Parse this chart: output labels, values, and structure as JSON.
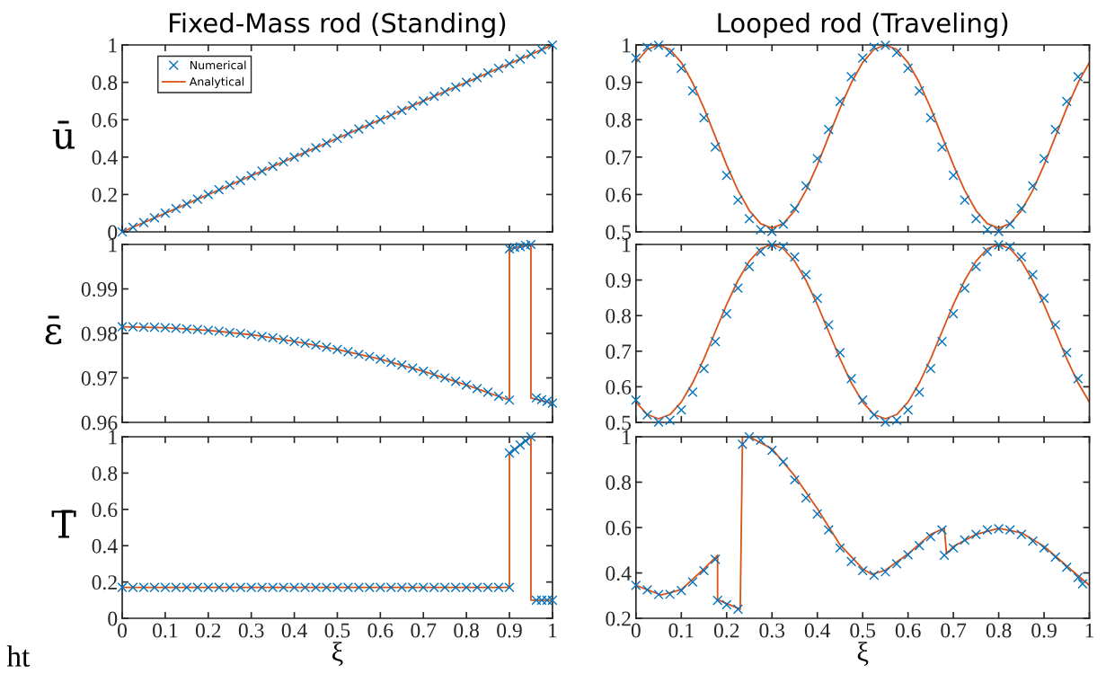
{
  "chart_data": [
    {
      "type": "line",
      "title": "Fixed-Mass rod (Standing)",
      "ylabel": "ū",
      "xlim": [
        0,
        1
      ],
      "xticks": [
        0,
        0.1,
        0.2,
        0.3,
        0.4,
        0.5,
        0.6,
        0.7,
        0.8,
        0.9,
        1
      ],
      "ylim": [
        0,
        1
      ],
      "yticks": [
        0,
        0.2,
        0.4,
        0.6,
        0.8,
        1
      ],
      "tick_labels": "y",
      "grid": false,
      "legend": "top left",
      "series": [
        {
          "name": "Numerical",
          "type": "scatter",
          "marker": "cross",
          "color": "#0072bd",
          "x": [
            0,
            0.025,
            0.05,
            0.075,
            0.1,
            0.125,
            0.15,
            0.175,
            0.2,
            0.225,
            0.25,
            0.275,
            0.3,
            0.325,
            0.35,
            0.375,
            0.4,
            0.425,
            0.45,
            0.475,
            0.5,
            0.525,
            0.55,
            0.575,
            0.6,
            0.625,
            0.65,
            0.675,
            0.7,
            0.725,
            0.75,
            0.775,
            0.8,
            0.825,
            0.85,
            0.875,
            0.9,
            0.925,
            0.95,
            0.975,
            1
          ],
          "values": [
            0,
            0.025,
            0.05,
            0.075,
            0.1,
            0.125,
            0.15,
            0.175,
            0.2,
            0.225,
            0.25,
            0.275,
            0.3,
            0.325,
            0.35,
            0.375,
            0.4,
            0.425,
            0.45,
            0.475,
            0.5,
            0.525,
            0.55,
            0.575,
            0.6,
            0.625,
            0.65,
            0.675,
            0.7,
            0.725,
            0.75,
            0.775,
            0.8,
            0.825,
            0.85,
            0.875,
            0.9,
            0.925,
            0.95,
            0.975,
            1
          ]
        },
        {
          "name": "Analytical",
          "color": "#d95319",
          "x": [
            0,
            1
          ],
          "values": [
            0,
            1
          ]
        }
      ]
    },
    {
      "type": "line",
      "title": "Looped rod (Traveling)",
      "xlim": [
        0,
        1
      ],
      "xticks": [
        0,
        0.1,
        0.2,
        0.3,
        0.4,
        0.5,
        0.6,
        0.7,
        0.8,
        0.9,
        1
      ],
      "ylim": [
        0.5,
        1
      ],
      "yticks": [
        0.5,
        0.6,
        0.7,
        0.8,
        0.9,
        1
      ],
      "tick_labels": "y",
      "grid": false,
      "series": [
        {
          "type": "scatter",
          "marker": "cross",
          "color": "#0072bd",
          "x": [
            0,
            0.025,
            0.05,
            0.075,
            0.1,
            0.125,
            0.15,
            0.175,
            0.2,
            0.225,
            0.25,
            0.275,
            0.3,
            0.325,
            0.35,
            0.375,
            0.4,
            0.425,
            0.45,
            0.475,
            0.5,
            0.525,
            0.55,
            0.575,
            0.6,
            0.625,
            0.65,
            0.675,
            0.7,
            0.725,
            0.75,
            0.775,
            0.8,
            0.825,
            0.85,
            0.875,
            0.9,
            0.925,
            0.95,
            0.975
          ],
          "values": [
            0.965,
            0.994,
            0.999,
            0.98,
            0.938,
            0.877,
            0.805,
            0.727,
            0.651,
            0.585,
            0.535,
            0.506,
            0.501,
            0.521,
            0.563,
            0.623,
            0.696,
            0.774,
            0.849,
            0.915,
            0.965,
            0.994,
            0.999,
            0.98,
            0.938,
            0.877,
            0.805,
            0.727,
            0.651,
            0.585,
            0.535,
            0.506,
            0.501,
            0.521,
            0.563,
            0.623,
            0.696,
            0.774,
            0.849,
            0.915
          ]
        },
        {
          "color": "#d95319",
          "x": [
            0,
            0.025,
            0.05,
            0.075,
            0.1,
            0.125,
            0.15,
            0.175,
            0.2,
            0.225,
            0.25,
            0.275,
            0.3,
            0.325,
            0.35,
            0.375,
            0.4,
            0.425,
            0.45,
            0.475,
            0.5,
            0.525,
            0.55,
            0.575,
            0.6,
            0.625,
            0.65,
            0.675,
            0.7,
            0.725,
            0.75,
            0.775,
            0.8,
            0.825,
            0.85,
            0.875,
            0.9,
            0.925,
            0.95,
            0.975,
            1
          ],
          "values": [
            0.953,
            0.988,
            1.0,
            0.988,
            0.953,
            0.899,
            0.831,
            0.755,
            0.679,
            0.611,
            0.557,
            0.522,
            0.51,
            0.522,
            0.557,
            0.611,
            0.679,
            0.755,
            0.831,
            0.899,
            0.953,
            0.988,
            1.0,
            0.988,
            0.953,
            0.899,
            0.831,
            0.755,
            0.679,
            0.611,
            0.557,
            0.522,
            0.51,
            0.522,
            0.557,
            0.611,
            0.679,
            0.755,
            0.831,
            0.899,
            0.953
          ]
        }
      ]
    },
    {
      "type": "line",
      "ylabel": "ε̄",
      "xlim": [
        0,
        1
      ],
      "xticks": [
        0,
        0.1,
        0.2,
        0.3,
        0.4,
        0.5,
        0.6,
        0.7,
        0.8,
        0.9,
        1
      ],
      "ylim": [
        0.96,
        1
      ],
      "yticks": [
        0.96,
        0.97,
        0.98,
        0.99,
        1
      ],
      "tick_labels": "y",
      "grid": false,
      "series": [
        {
          "type": "scatter",
          "marker": "cross",
          "color": "#0072bd",
          "x": [
            0,
            0.025,
            0.05,
            0.075,
            0.1,
            0.125,
            0.15,
            0.175,
            0.2,
            0.225,
            0.25,
            0.275,
            0.3,
            0.325,
            0.35,
            0.375,
            0.4,
            0.425,
            0.45,
            0.475,
            0.5,
            0.525,
            0.55,
            0.575,
            0.6,
            0.625,
            0.65,
            0.675,
            0.7,
            0.725,
            0.75,
            0.775,
            0.8,
            0.825,
            0.85,
            0.875,
            0.9,
            0.9,
            0.9125,
            0.925,
            0.9375,
            0.95,
            0.9625,
            0.975,
            0.9875,
            1
          ],
          "values": [
            0.9815,
            0.9815,
            0.9814,
            0.9814,
            0.9813,
            0.9812,
            0.981,
            0.9809,
            0.9807,
            0.9805,
            0.9802,
            0.98,
            0.9797,
            0.9793,
            0.979,
            0.9786,
            0.9782,
            0.9778,
            0.9774,
            0.9769,
            0.9764,
            0.9759,
            0.9753,
            0.9748,
            0.9742,
            0.9735,
            0.9729,
            0.9722,
            0.9715,
            0.9708,
            0.97,
            0.9692,
            0.9684,
            0.9676,
            0.9668,
            0.9659,
            0.965,
            0.999,
            0.9993,
            0.9995,
            0.9998,
            1.0,
            0.9655,
            0.9651,
            0.9647,
            0.9643
          ]
        },
        {
          "color": "#d95319",
          "x": [
            0,
            0.1,
            0.2,
            0.3,
            0.4,
            0.5,
            0.6,
            0.7,
            0.8,
            0.9,
            0.9,
            0.95,
            0.95,
            1
          ],
          "values": [
            0.9815,
            0.9813,
            0.9807,
            0.9797,
            0.9782,
            0.9764,
            0.9742,
            0.9715,
            0.9684,
            0.965,
            0.999,
            1.0,
            0.9655,
            0.9643
          ]
        }
      ]
    },
    {
      "type": "line",
      "xlim": [
        0,
        1
      ],
      "xticks": [
        0,
        0.1,
        0.2,
        0.3,
        0.4,
        0.5,
        0.6,
        0.7,
        0.8,
        0.9,
        1
      ],
      "ylim": [
        0.5,
        1
      ],
      "yticks": [
        0.5,
        0.6,
        0.7,
        0.8,
        0.9,
        1
      ],
      "tick_labels": "y",
      "grid": false,
      "series": [
        {
          "type": "scatter",
          "marker": "cross",
          "color": "#0072bd",
          "x": [
            0,
            0.025,
            0.05,
            0.075,
            0.1,
            0.125,
            0.15,
            0.175,
            0.2,
            0.225,
            0.25,
            0.275,
            0.3,
            0.325,
            0.35,
            0.375,
            0.4,
            0.425,
            0.45,
            0.475,
            0.5,
            0.525,
            0.55,
            0.575,
            0.6,
            0.625,
            0.65,
            0.675,
            0.7,
            0.725,
            0.75,
            0.775,
            0.8,
            0.825,
            0.85,
            0.875,
            0.9,
            0.925,
            0.95,
            0.975
          ],
          "values": [
            0.563,
            0.521,
            0.501,
            0.506,
            0.535,
            0.585,
            0.651,
            0.727,
            0.805,
            0.877,
            0.938,
            0.98,
            0.999,
            0.994,
            0.965,
            0.915,
            0.849,
            0.774,
            0.696,
            0.623,
            0.563,
            0.521,
            0.501,
            0.506,
            0.535,
            0.585,
            0.651,
            0.727,
            0.805,
            0.877,
            0.938,
            0.98,
            0.999,
            0.994,
            0.965,
            0.915,
            0.849,
            0.774,
            0.696,
            0.623
          ]
        },
        {
          "color": "#d95319",
          "x": [
            0,
            0.025,
            0.05,
            0.075,
            0.1,
            0.125,
            0.15,
            0.175,
            0.2,
            0.225,
            0.25,
            0.275,
            0.3,
            0.325,
            0.35,
            0.375,
            0.4,
            0.425,
            0.45,
            0.475,
            0.5,
            0.525,
            0.55,
            0.575,
            0.6,
            0.625,
            0.65,
            0.675,
            0.7,
            0.725,
            0.75,
            0.775,
            0.8,
            0.825,
            0.85,
            0.875,
            0.9,
            0.925,
            0.95,
            0.975,
            1
          ],
          "values": [
            0.557,
            0.522,
            0.51,
            0.522,
            0.557,
            0.611,
            0.679,
            0.755,
            0.831,
            0.899,
            0.953,
            0.988,
            1.0,
            0.988,
            0.953,
            0.899,
            0.831,
            0.755,
            0.679,
            0.611,
            0.557,
            0.522,
            0.51,
            0.522,
            0.557,
            0.611,
            0.679,
            0.755,
            0.831,
            0.899,
            0.953,
            0.988,
            1.0,
            0.988,
            0.953,
            0.899,
            0.831,
            0.755,
            0.679,
            0.611,
            0.557
          ]
        }
      ]
    },
    {
      "type": "line",
      "ylabel": "T̄",
      "xlabel": "ξ",
      "annotations": [
        "ht"
      ],
      "xlim": [
        0,
        1
      ],
      "xticks": [
        0,
        0.1,
        0.2,
        0.3,
        0.4,
        0.5,
        0.6,
        0.7,
        0.8,
        0.9,
        1
      ],
      "ylim": [
        0,
        1
      ],
      "yticks": [
        0,
        0.2,
        0.4,
        0.6,
        0.8,
        1
      ],
      "grid": false,
      "series": [
        {
          "type": "scatter",
          "marker": "cross",
          "color": "#0072bd",
          "x": [
            0,
            0.025,
            0.05,
            0.075,
            0.1,
            0.125,
            0.15,
            0.175,
            0.2,
            0.225,
            0.25,
            0.275,
            0.3,
            0.325,
            0.35,
            0.375,
            0.4,
            0.425,
            0.45,
            0.475,
            0.5,
            0.525,
            0.55,
            0.575,
            0.6,
            0.625,
            0.65,
            0.675,
            0.7,
            0.725,
            0.75,
            0.775,
            0.8,
            0.825,
            0.85,
            0.875,
            0.9,
            0.9,
            0.9125,
            0.925,
            0.9375,
            0.95,
            0.9625,
            0.975,
            0.9875,
            1
          ],
          "values": [
            0.17,
            0.17,
            0.17,
            0.17,
            0.17,
            0.17,
            0.17,
            0.17,
            0.17,
            0.17,
            0.17,
            0.17,
            0.17,
            0.17,
            0.17,
            0.17,
            0.17,
            0.17,
            0.17,
            0.17,
            0.17,
            0.17,
            0.17,
            0.17,
            0.17,
            0.17,
            0.17,
            0.17,
            0.17,
            0.17,
            0.17,
            0.17,
            0.17,
            0.17,
            0.17,
            0.17,
            0.17,
            0.91,
            0.93,
            0.955,
            0.977,
            1.0,
            0.1,
            0.1,
            0.1,
            0.1
          ]
        },
        {
          "color": "#d95319",
          "x": [
            0,
            0.9,
            0.9,
            0.95,
            0.95,
            1
          ],
          "values": [
            0.17,
            0.17,
            0.91,
            1.0,
            0.1,
            0.1
          ]
        }
      ]
    },
    {
      "type": "line",
      "xlabel": "ξ",
      "xlim": [
        0,
        1
      ],
      "xticks": [
        0,
        0.1,
        0.2,
        0.3,
        0.4,
        0.5,
        0.6,
        0.7,
        0.8,
        0.9,
        1
      ],
      "ylim": [
        0.2,
        1
      ],
      "yticks": [
        0.2,
        0.4,
        0.6,
        0.8,
        1
      ],
      "grid": false,
      "series": [
        {
          "type": "scatter",
          "marker": "cross",
          "color": "#0072bd",
          "x": [
            0,
            0.025,
            0.05,
            0.075,
            0.1,
            0.125,
            0.15,
            0.175,
            0.18,
            0.2,
            0.225,
            0.235,
            0.25,
            0.275,
            0.3,
            0.325,
            0.35,
            0.375,
            0.4,
            0.425,
            0.45,
            0.475,
            0.5,
            0.525,
            0.55,
            0.575,
            0.6,
            0.625,
            0.65,
            0.675,
            0.68,
            0.7,
            0.725,
            0.75,
            0.775,
            0.8,
            0.825,
            0.85,
            0.875,
            0.9,
            0.925,
            0.95,
            0.975,
            0.985
          ],
          "values": [
            0.345,
            0.325,
            0.305,
            0.306,
            0.322,
            0.36,
            0.41,
            0.46,
            0.279,
            0.26,
            0.24,
            0.967,
            1.0,
            0.985,
            0.94,
            0.89,
            0.81,
            0.73,
            0.66,
            0.59,
            0.51,
            0.45,
            0.41,
            0.39,
            0.405,
            0.44,
            0.48,
            0.52,
            0.56,
            0.59,
            0.478,
            0.51,
            0.545,
            0.57,
            0.59,
            0.595,
            0.59,
            0.57,
            0.54,
            0.51,
            0.47,
            0.425,
            0.38,
            0.352
          ]
        },
        {
          "color": "#d95319",
          "x": [
            0,
            0.055,
            0.1,
            0.15,
            0.18,
            0.18,
            0.23,
            0.235,
            0.25,
            0.3,
            0.35,
            0.4,
            0.45,
            0.5,
            0.52,
            0.55,
            0.6,
            0.65,
            0.68,
            0.685,
            0.7,
            0.75,
            0.8,
            0.85,
            0.9,
            0.95,
            1
          ],
          "values": [
            0.345,
            0.303,
            0.326,
            0.418,
            0.478,
            0.282,
            0.24,
            1.0,
            1.0,
            0.947,
            0.828,
            0.683,
            0.524,
            0.418,
            0.394,
            0.412,
            0.484,
            0.57,
            0.597,
            0.484,
            0.517,
            0.57,
            0.597,
            0.577,
            0.517,
            0.431,
            0.345
          ]
        }
      ]
    }
  ]
}
